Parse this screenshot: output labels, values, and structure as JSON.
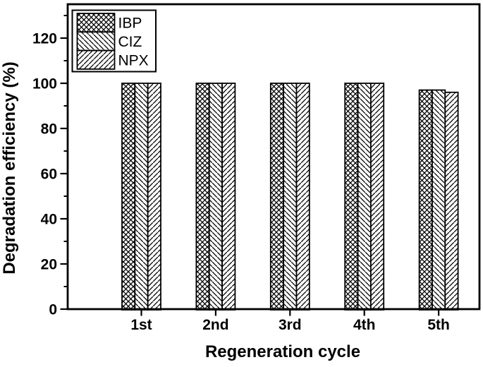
{
  "chart_data": {
    "type": "bar",
    "title": "",
    "xlabel": "Regeneration cycle",
    "ylabel": "Degradation efficiency (%)",
    "categories": [
      "1st",
      "2nd",
      "3rd",
      "4th",
      "5th"
    ],
    "series": [
      {
        "name": "IBP",
        "pattern": "crosshatch",
        "values": [
          100,
          100,
          100,
          100,
          97
        ]
      },
      {
        "name": "CIZ",
        "pattern": "diagonal-back",
        "values": [
          100,
          100,
          100,
          100,
          97
        ]
      },
      {
        "name": "NPX",
        "pattern": "diagonal-forward",
        "values": [
          100,
          100,
          100,
          100,
          96
        ]
      }
    ],
    "ylim": [
      0,
      135
    ],
    "ytick_major_step": 20,
    "ytick_minor_step": 10,
    "ytick_label_max": 120,
    "ytick_labels": [
      "0",
      "20",
      "40",
      "60",
      "80",
      "100",
      "120"
    ],
    "legend_position": "top-left",
    "legend_entries": [
      "IBP",
      "CIZ",
      "NPX"
    ],
    "grid": false,
    "foreground": "#000000",
    "background": "#ffffff"
  }
}
